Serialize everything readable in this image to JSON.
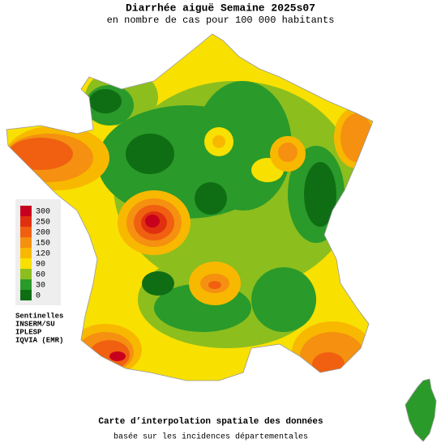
{
  "header": {
    "title": "Diarrhée aiguë Semaine 2025s07",
    "subtitle": "en nombre de cas pour 100 000 habitants"
  },
  "legend": [
    {
      "value": 300,
      "color": "#c8001e"
    },
    {
      "value": 250,
      "color": "#e03010"
    },
    {
      "value": 200,
      "color": "#f06010"
    },
    {
      "value": 150,
      "color": "#f59010"
    },
    {
      "value": 120,
      "color": "#f8b800"
    },
    {
      "value": 90,
      "color": "#f8e000"
    },
    {
      "value": 60,
      "color": "#8cbe1e"
    },
    {
      "value": 30,
      "color": "#2a9a2a"
    },
    {
      "value": 0,
      "color": "#0f6e14"
    }
  ],
  "sources": [
    "Sentinelles",
    "INSERM/SU",
    "IPLESP",
    "IQVIA (EMR)"
  ],
  "footer": [
    "Carte d’interpolation spatiale des données",
    "basée sur les incidences départementales"
  ]
}
